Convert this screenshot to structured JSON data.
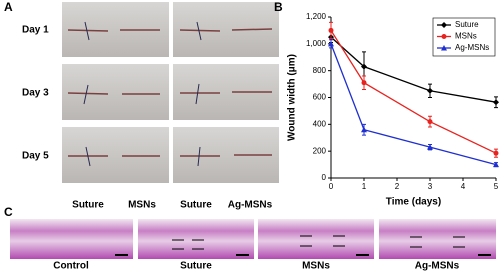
{
  "panel_a": {
    "letter": "A",
    "rows": [
      "Day 1",
      "Day 3",
      "Day 5"
    ],
    "columns": [
      "Suture",
      "MSNs",
      "Suture",
      "Ag-MSNs"
    ]
  },
  "chart_data": {
    "type": "line",
    "letter": "B",
    "x_label": "Time (days)",
    "y_label": "Wound width (μm)",
    "x": [
      0,
      1,
      3,
      5
    ],
    "xlim": [
      0,
      5
    ],
    "xticks": [
      0,
      1,
      2,
      3,
      4,
      5
    ],
    "ylim": [
      0,
      1200
    ],
    "yticks": [
      0,
      200,
      400,
      600,
      800,
      {
        "value": 1000,
        "label": "1,000"
      },
      {
        "value": 1200,
        "label": "1,200"
      }
    ],
    "legend": "upper right",
    "series": [
      {
        "name": "Suture",
        "color": "#000000",
        "marker": "diamond",
        "values": [
          1050,
          830,
          650,
          565
        ],
        "errors": [
          40,
          110,
          50,
          40
        ]
      },
      {
        "name": "MSNs",
        "color": "#e8231f",
        "marker": "circle",
        "values": [
          1100,
          710,
          420,
          185
        ],
        "errors": [
          60,
          50,
          40,
          30
        ]
      },
      {
        "name": "Ag-MSNs",
        "color": "#1f2fd0",
        "marker": "triangle",
        "values": [
          1000,
          360,
          230,
          100
        ],
        "errors": [
          30,
          40,
          20,
          15
        ]
      }
    ]
  },
  "panel_c": {
    "letter": "C",
    "images": [
      "Control",
      "Suture",
      "MSNs",
      "Ag-MSNs"
    ]
  }
}
